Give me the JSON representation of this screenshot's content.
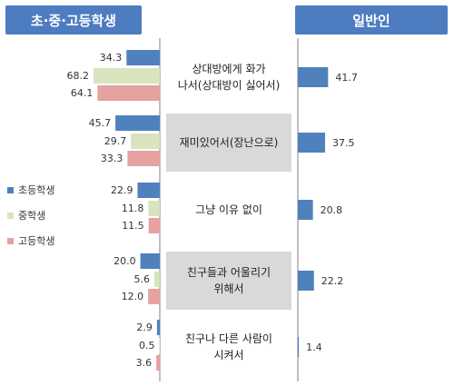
{
  "header": {
    "left_title": "초·중·고등학생",
    "right_title": "일반인"
  },
  "legend": [
    {
      "label": "초등학생",
      "color": "#4f81bd"
    },
    {
      "label": "중학생",
      "color": "#d7e4bd"
    },
    {
      "label": "고등학생",
      "color": "#e6a1a1"
    }
  ],
  "chart_data": {
    "type": "bar",
    "categories": [
      [
        "상대방에게 화가",
        "나서(상대방이 싫어서)"
      ],
      [
        "재미있어서(장난으로)"
      ],
      [
        "그냥 이유 없이"
      ],
      [
        "친구들과 어울리기",
        "위해서"
      ],
      [
        "친구나 다른 사람이",
        "시켜서"
      ]
    ],
    "series": [
      {
        "name": "초등학생",
        "group": "초·중·고등학생",
        "values": [
          34.3,
          45.7,
          22.9,
          20.0,
          2.9
        ]
      },
      {
        "name": "중학생",
        "group": "초·중·고등학생",
        "values": [
          68.2,
          29.7,
          11.8,
          5.6,
          0.5
        ]
      },
      {
        "name": "고등학생",
        "group": "초·중·고등학생",
        "values": [
          64.1,
          33.3,
          11.5,
          12.0,
          3.6
        ]
      },
      {
        "group": "일반인",
        "values": [
          41.7,
          37.5,
          20.8,
          22.2,
          1.4
        ]
      }
    ],
    "highlighted_categories": [
      1,
      3
    ],
    "colors": {
      "elementary": "#4f81bd",
      "middle": "#d7e4bd",
      "high": "#e6a1a1",
      "adult": "#4f81bd",
      "highlight_box": "#d9d9d9",
      "axis": "#808080"
    }
  }
}
